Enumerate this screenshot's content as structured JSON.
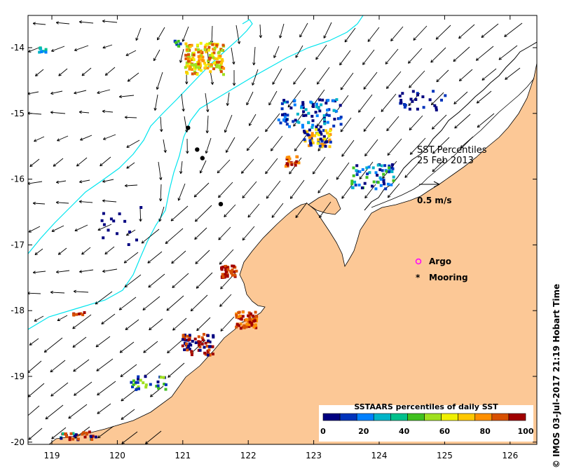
{
  "title_line1": "SST Percentiles",
  "title_line2": "25 Feb 2013",
  "vector_scale_label": "0.5 m/s",
  "legend": {
    "argo": "Argo",
    "mooring": "Mooring"
  },
  "credit": "© IMOS 03-Jul-2017 21:19 Hobart Time",
  "colorbar": {
    "title": "SSTAARS percentiles of daily SST",
    "tick_labels": [
      "0",
      "20",
      "40",
      "60",
      "80",
      "100"
    ],
    "colors": [
      "#000080",
      "#0033bb",
      "#0080ff",
      "#00b4c8",
      "#00c08c",
      "#40c020",
      "#a0e020",
      "#f0f000",
      "#ffc800",
      "#ff9000",
      "#d85000",
      "#a00000"
    ]
  },
  "colors": {
    "land": "#fcc896",
    "ocean": "#ffffff",
    "isobath": "#00e5ee",
    "arrow": "#000000",
    "mooring": "#000000",
    "argo": "#ff00ff"
  },
  "axes": {
    "x_ticks": [
      "119",
      "120",
      "121",
      "122",
      "123",
      "124",
      "125",
      "126"
    ],
    "y_ticks": [
      "-14",
      "-15",
      "-16",
      "-17",
      "-18",
      "-19",
      "-20"
    ]
  },
  "moorings": [
    {
      "lon": 121.08,
      "lat": -15.22
    },
    {
      "lon": 121.22,
      "lat": -15.55
    },
    {
      "lon": 121.3,
      "lat": -15.68
    },
    {
      "lon": 121.58,
      "lat": -16.38
    }
  ]
}
